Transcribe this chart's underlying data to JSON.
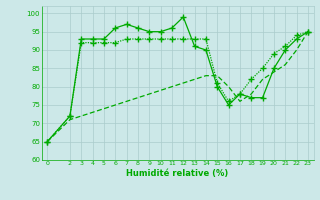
{
  "title": "",
  "xlabel": "Humidité relative (%)",
  "bg_color": "#cce8e8",
  "line_color": "#00aa00",
  "grid_color": "#aacccc",
  "x_ticks": [
    0,
    2,
    3,
    4,
    5,
    6,
    7,
    8,
    9,
    10,
    11,
    12,
    13,
    14,
    15,
    16,
    17,
    18,
    19,
    20,
    21,
    22,
    23
  ],
  "ylim": [
    60,
    102
  ],
  "yticks": [
    60,
    65,
    70,
    75,
    80,
    85,
    90,
    95,
    100
  ],
  "line1_x": [
    0,
    2,
    3,
    4,
    5,
    6,
    7,
    8,
    9,
    10,
    11,
    12,
    13,
    14,
    15,
    16,
    17,
    18,
    19,
    20,
    21,
    22,
    23
  ],
  "line1_y": [
    65,
    72,
    93,
    93,
    93,
    96,
    97,
    96,
    95,
    95,
    96,
    99,
    91,
    90,
    80,
    75,
    78,
    77,
    77,
    85,
    90,
    93,
    95
  ],
  "line2_x": [
    0,
    2,
    3,
    4,
    5,
    6,
    7,
    8,
    9,
    10,
    11,
    12,
    13,
    14,
    15,
    16,
    17,
    18,
    19,
    20,
    21,
    22,
    23
  ],
  "line2_y": [
    65,
    72,
    92,
    92,
    92,
    92,
    93,
    93,
    93,
    93,
    93,
    93,
    93,
    93,
    81,
    76,
    78,
    82,
    85,
    89,
    91,
    94,
    95
  ],
  "line3_x": [
    0,
    2,
    3,
    4,
    5,
    6,
    7,
    8,
    9,
    10,
    11,
    12,
    13,
    14,
    15,
    16,
    17,
    18,
    19,
    20,
    21,
    22,
    23
  ],
  "line3_y": [
    65,
    71,
    72,
    73,
    74,
    75,
    76,
    77,
    78,
    79,
    80,
    81,
    82,
    83,
    83,
    80,
    76,
    78,
    82,
    84,
    86,
    90,
    95
  ]
}
